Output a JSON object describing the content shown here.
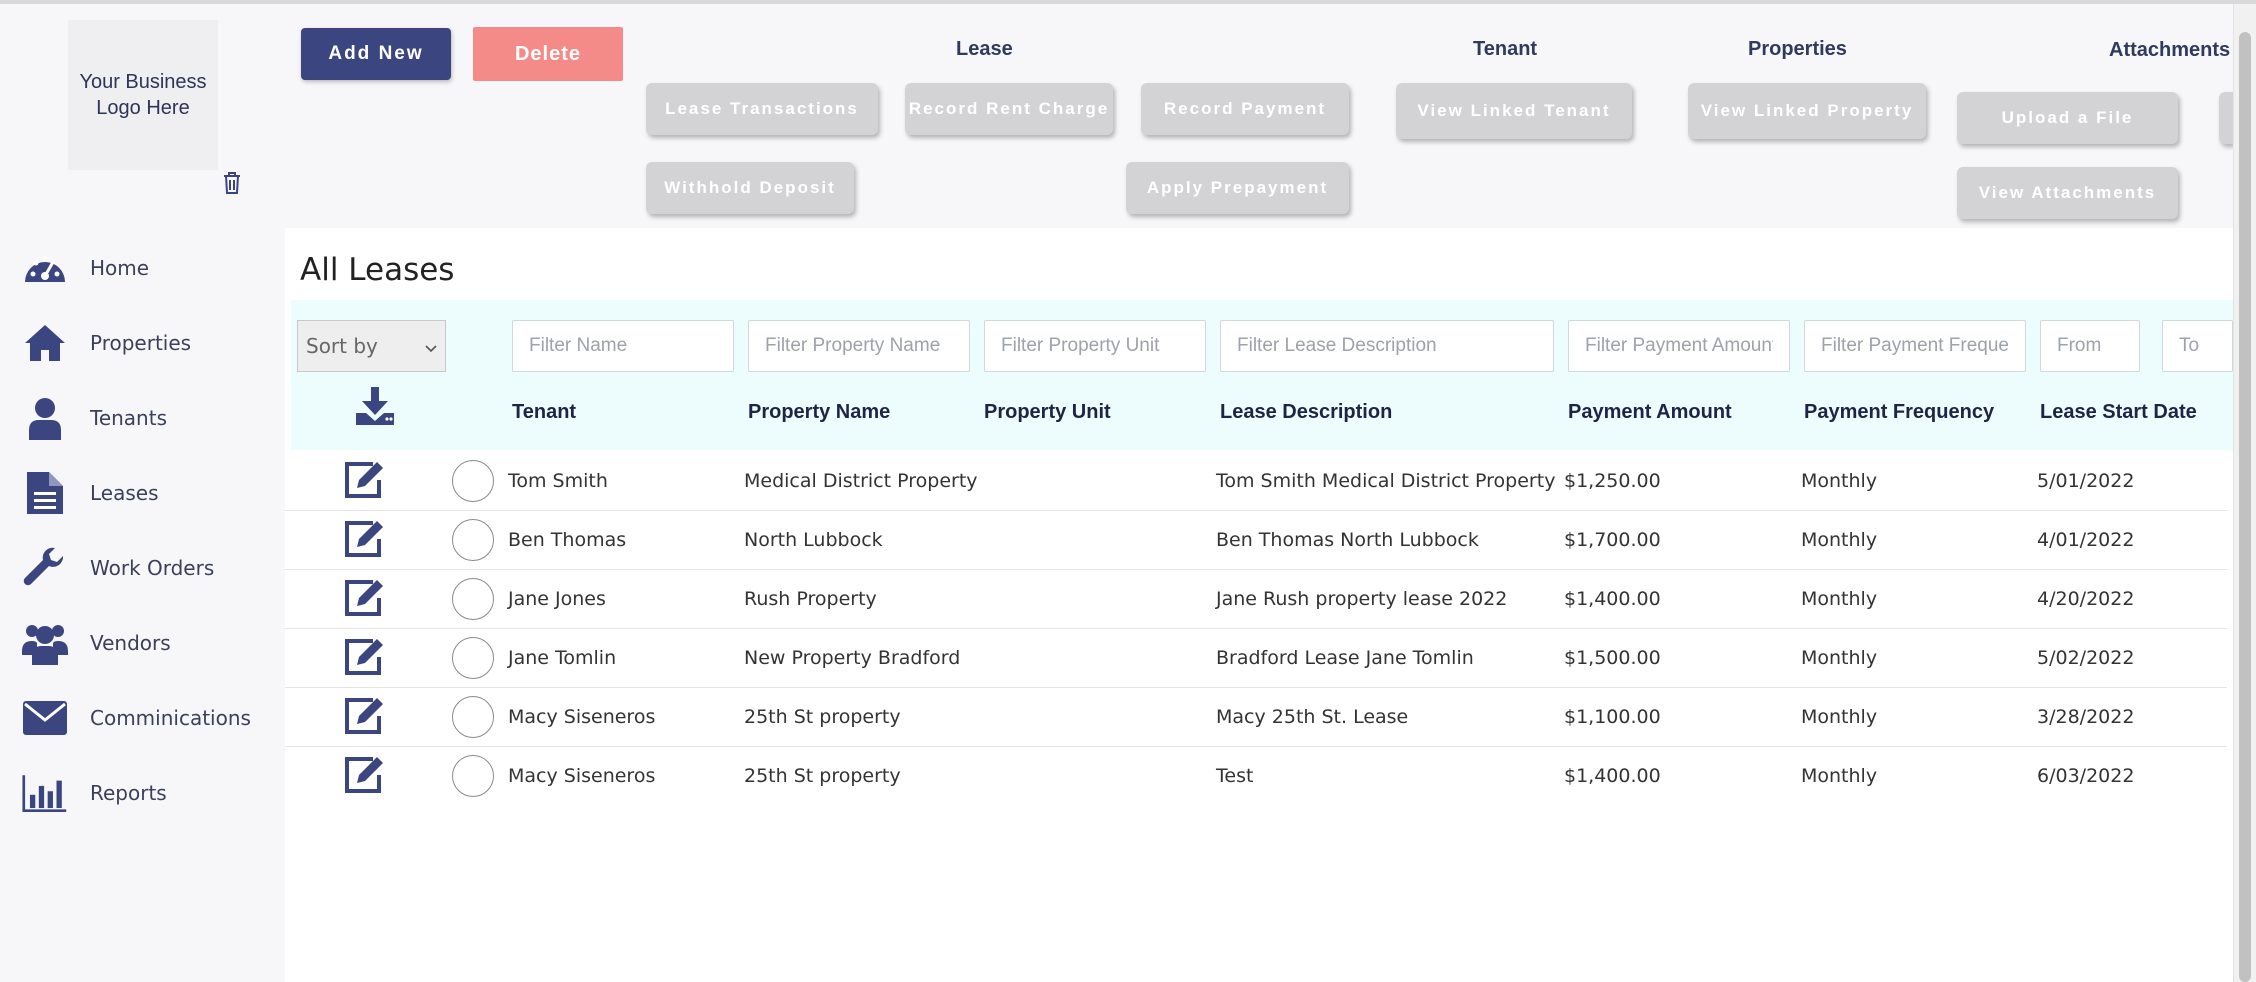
{
  "sidebar": {
    "logo_text_line1": "Your Business",
    "logo_text_line2": "Logo Here",
    "items": [
      {
        "label": "Home",
        "icon": "dashboard-gauge-icon"
      },
      {
        "label": "Properties",
        "icon": "house-icon"
      },
      {
        "label": "Tenants",
        "icon": "person-icon"
      },
      {
        "label": "Leases",
        "icon": "document-icon"
      },
      {
        "label": "Work Orders",
        "icon": "wrench-icon"
      },
      {
        "label": "Vendors",
        "icon": "users-group-icon"
      },
      {
        "label": "Comminications",
        "icon": "envelope-icon"
      },
      {
        "label": "Reports",
        "icon": "bar-chart-icon"
      }
    ]
  },
  "toolbar": {
    "add_new": "Add New",
    "delete": "Delete",
    "lease_group": {
      "title": "Lease",
      "lease_transactions": "Lease Transactions",
      "record_rent_charge": "Record Rent Charge",
      "record_payment": "Record Payment",
      "withhold_deposit": "Withhold Deposit",
      "apply_prepayment": "Apply Prepayment"
    },
    "tenant_group": {
      "title": "Tenant",
      "view_linked_tenant": "View Linked Tenant"
    },
    "properties_group": {
      "title": "Properties",
      "view_linked_property": "View Linked Property"
    },
    "attachments_group": {
      "title": "Attachments",
      "upload_file": "Upload a File",
      "view_attachments": "View Attachments"
    }
  },
  "main": {
    "title": "All Leases",
    "sort_by": "Sort by",
    "filters": {
      "name": "Filter Name",
      "property_name": "Filter Property Name",
      "property_unit": "Filter Property Unit",
      "lease_description": "Filter Lease Description",
      "payment_amount": "Filter Payment Amount",
      "payment_frequency": "Filter Payment Frequency",
      "from": "From",
      "to": "To"
    },
    "columns": {
      "tenant": "Tenant",
      "property_name": "Property Name",
      "property_unit": "Property Unit",
      "lease_description": "Lease Description",
      "payment_amount": "Payment Amount",
      "payment_frequency": "Payment Frequency",
      "lease_start_date": "Lease Start Date"
    },
    "rows": [
      {
        "tenant": "Tom Smith",
        "property_name": "Medical District Property",
        "property_unit": "",
        "lease_description": "Tom Smith Medical District Property",
        "payment_amount": "$1,250.00",
        "payment_frequency": "Monthly",
        "lease_start_date": "5/01/2022"
      },
      {
        "tenant": "Ben Thomas",
        "property_name": "North Lubbock",
        "property_unit": "",
        "lease_description": "Ben Thomas North Lubbock",
        "payment_amount": "$1,700.00",
        "payment_frequency": "Monthly",
        "lease_start_date": "4/01/2022"
      },
      {
        "tenant": "Jane Jones",
        "property_name": "Rush Property",
        "property_unit": "",
        "lease_description": "Jane Rush property lease 2022",
        "payment_amount": "$1,400.00",
        "payment_frequency": "Monthly",
        "lease_start_date": "4/20/2022"
      },
      {
        "tenant": "Jane Tomlin",
        "property_name": "New Property Bradford",
        "property_unit": "",
        "lease_description": "Bradford Lease Jane Tomlin",
        "payment_amount": "$1,500.00",
        "payment_frequency": "Monthly",
        "lease_start_date": "5/02/2022"
      },
      {
        "tenant": "Macy Siseneros",
        "property_name": "25th St property",
        "property_unit": "",
        "lease_description": "Macy 25th St. Lease",
        "payment_amount": "$1,100.00",
        "payment_frequency": "Monthly",
        "lease_start_date": "3/28/2022"
      },
      {
        "tenant": "Macy Siseneros",
        "property_name": "25th St property",
        "property_unit": "",
        "lease_description": "Test",
        "payment_amount": "$1,400.00",
        "payment_frequency": "Monthly",
        "lease_start_date": "6/03/2022"
      }
    ]
  },
  "colors": {
    "primary": "#3b4680",
    "danger": "#f58b89",
    "disabled_button": "#d3d3d5",
    "filter_band": "#edfcfd",
    "sidebar_bg": "#f7f7f9"
  }
}
